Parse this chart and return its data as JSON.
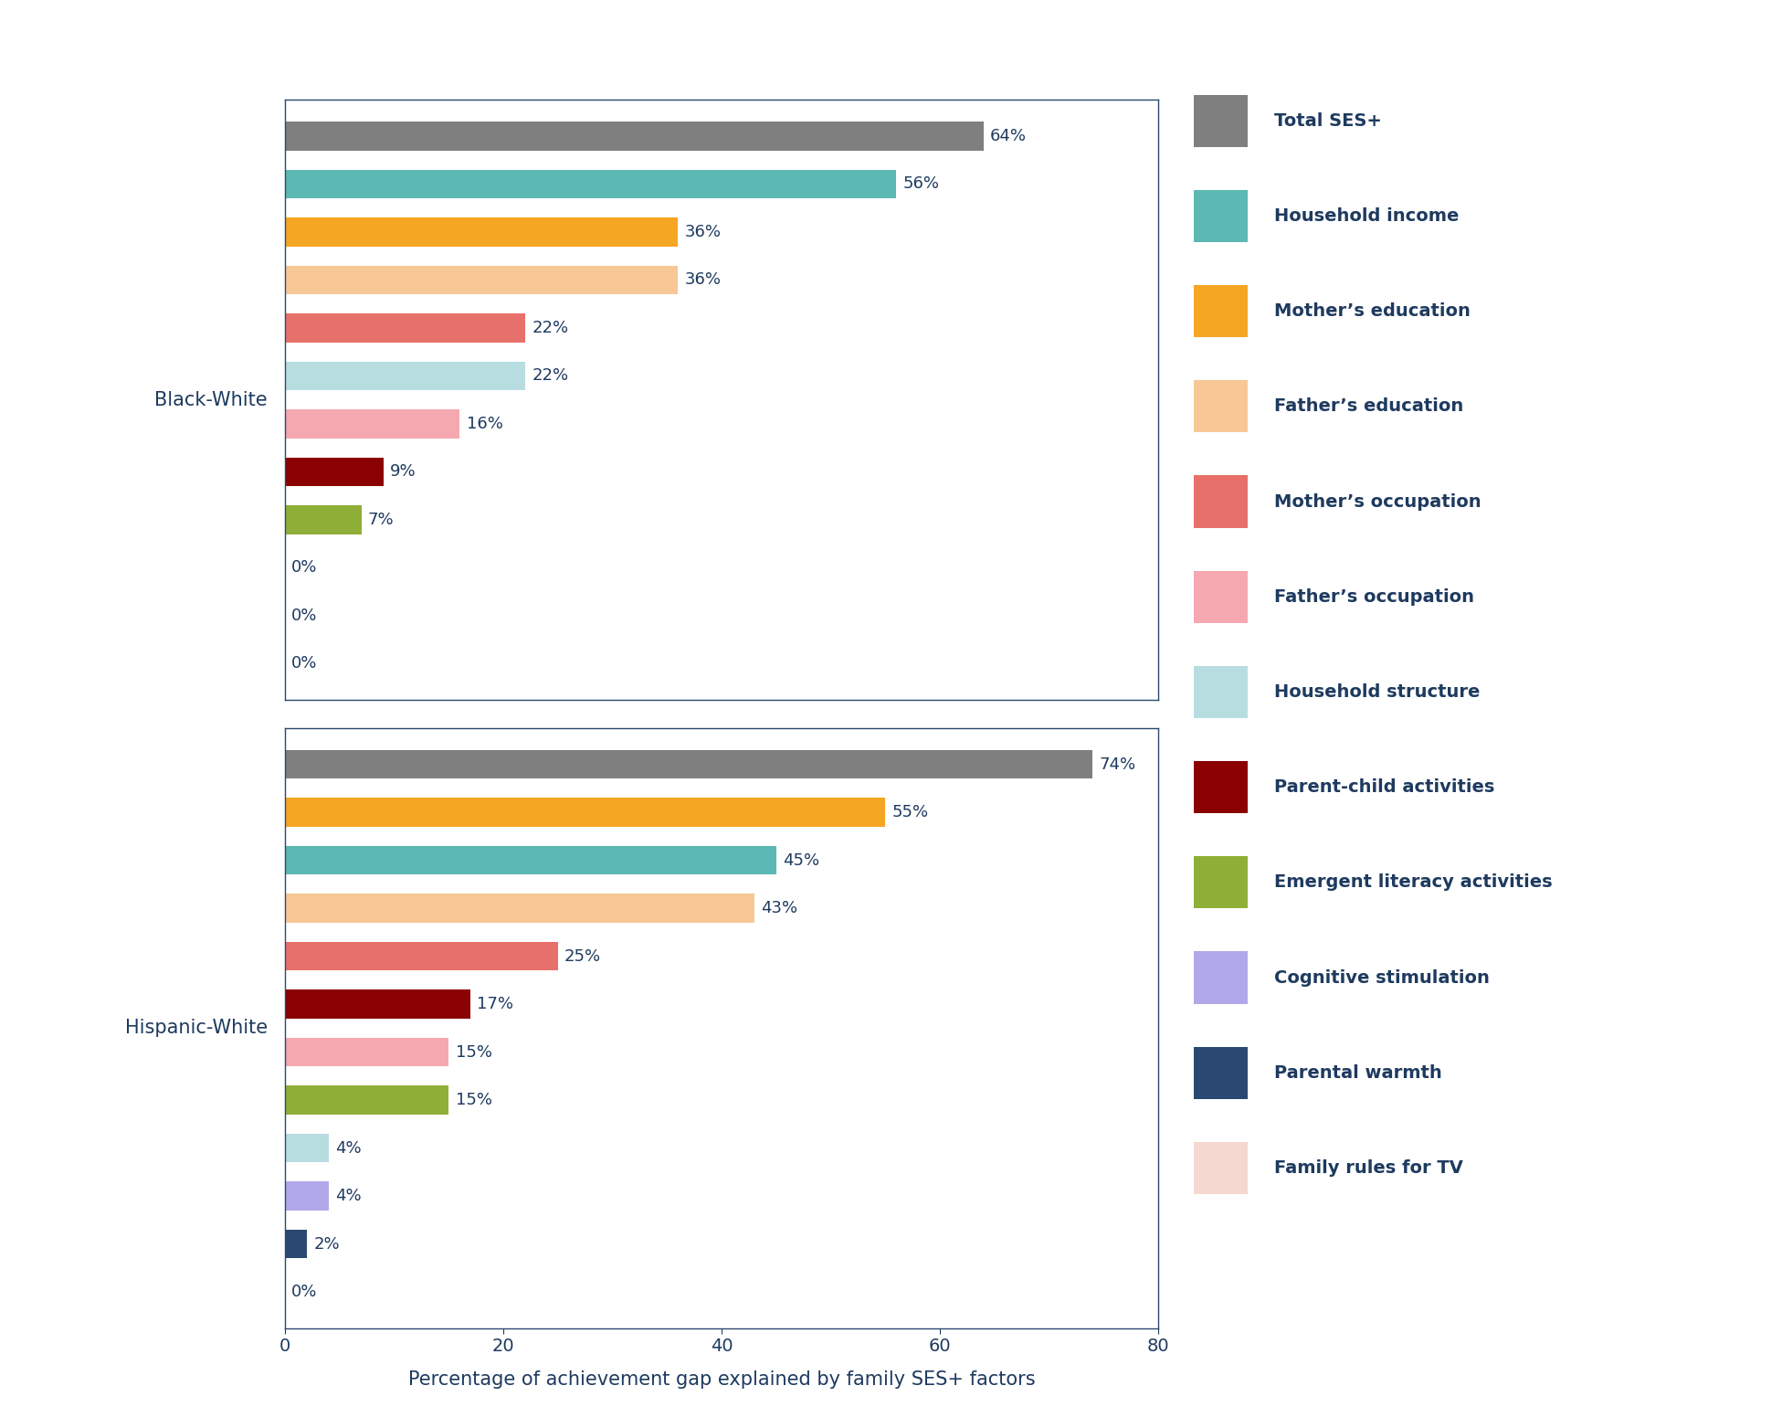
{
  "black_white": {
    "labels": [
      "Total SES+",
      "Household income",
      "Mother’s education",
      "Father’s education",
      "Mother’s occupation",
      "Household structure",
      "Father’s occupation",
      "Parent-child activities",
      "Emergent literacy activities",
      "Cognitive stimulation",
      "Parental warmth",
      "Family rules for TV"
    ],
    "values": [
      64,
      56,
      36,
      36,
      22,
      22,
      16,
      9,
      7,
      0,
      0,
      0
    ],
    "colors": [
      "#7F7F7F",
      "#5CB8B2",
      "#F5A623",
      "#F7C896",
      "#E8706A",
      "#B8DDE0",
      "#F5A8B0",
      "#8B0000",
      "#8FAF38",
      "#B0A8E8",
      "#2B4870",
      "#F5D8D0"
    ]
  },
  "hispanic_white": {
    "labels": [
      "Total SES+",
      "Mother’s education",
      "Household income",
      "Father’s education",
      "Mother’s occupation",
      "Parent-child activities",
      "Father’s occupation",
      "Emergent literacy activities",
      "Household structure",
      "Cognitive stimulation",
      "Parental warmth",
      "Family rules for TV"
    ],
    "values": [
      74,
      55,
      45,
      43,
      25,
      17,
      15,
      15,
      4,
      4,
      2,
      0
    ],
    "colors": [
      "#7F7F7F",
      "#F5A623",
      "#5CB8B2",
      "#F7C896",
      "#E8706A",
      "#8B0000",
      "#F5A8B0",
      "#8FAF38",
      "#B8DDE0",
      "#B0A8E8",
      "#2B4870",
      "#F5D8D0"
    ]
  },
  "legend_items": [
    {
      "label": "Total SES+",
      "color": "#7F7F7F"
    },
    {
      "label": "Household income",
      "color": "#5CB8B2"
    },
    {
      "label": "Mother’s education",
      "color": "#F5A623"
    },
    {
      "label": "Father’s education",
      "color": "#F7C896"
    },
    {
      "label": "Mother’s occupation",
      "color": "#E8706A"
    },
    {
      "label": "Father’s occupation",
      "color": "#F5A8B0"
    },
    {
      "label": "Household structure",
      "color": "#B8DDE0"
    },
    {
      "label": "Parent-child activities",
      "color": "#8B0000"
    },
    {
      "label": "Emergent literacy activities",
      "color": "#8FAF38"
    },
    {
      "label": "Cognitive stimulation",
      "color": "#B0A8E8"
    },
    {
      "label": "Parental warmth",
      "color": "#2B4870"
    },
    {
      "label": "Family rules for TV",
      "color": "#F5D8D0"
    }
  ],
  "xlabel": "Percentage of achievement gap explained by family SES+ factors",
  "xlim": [
    0,
    80
  ],
  "xticks": [
    0,
    20,
    40,
    60,
    80
  ],
  "bar_height": 0.6,
  "text_color": "#1E3A5F",
  "background_color": "#FFFFFF",
  "spine_color": "#2B4870",
  "label_fontsize": 15,
  "tick_fontsize": 14,
  "value_fontsize": 13,
  "group_label_fontsize": 15,
  "legend_fontsize": 14
}
